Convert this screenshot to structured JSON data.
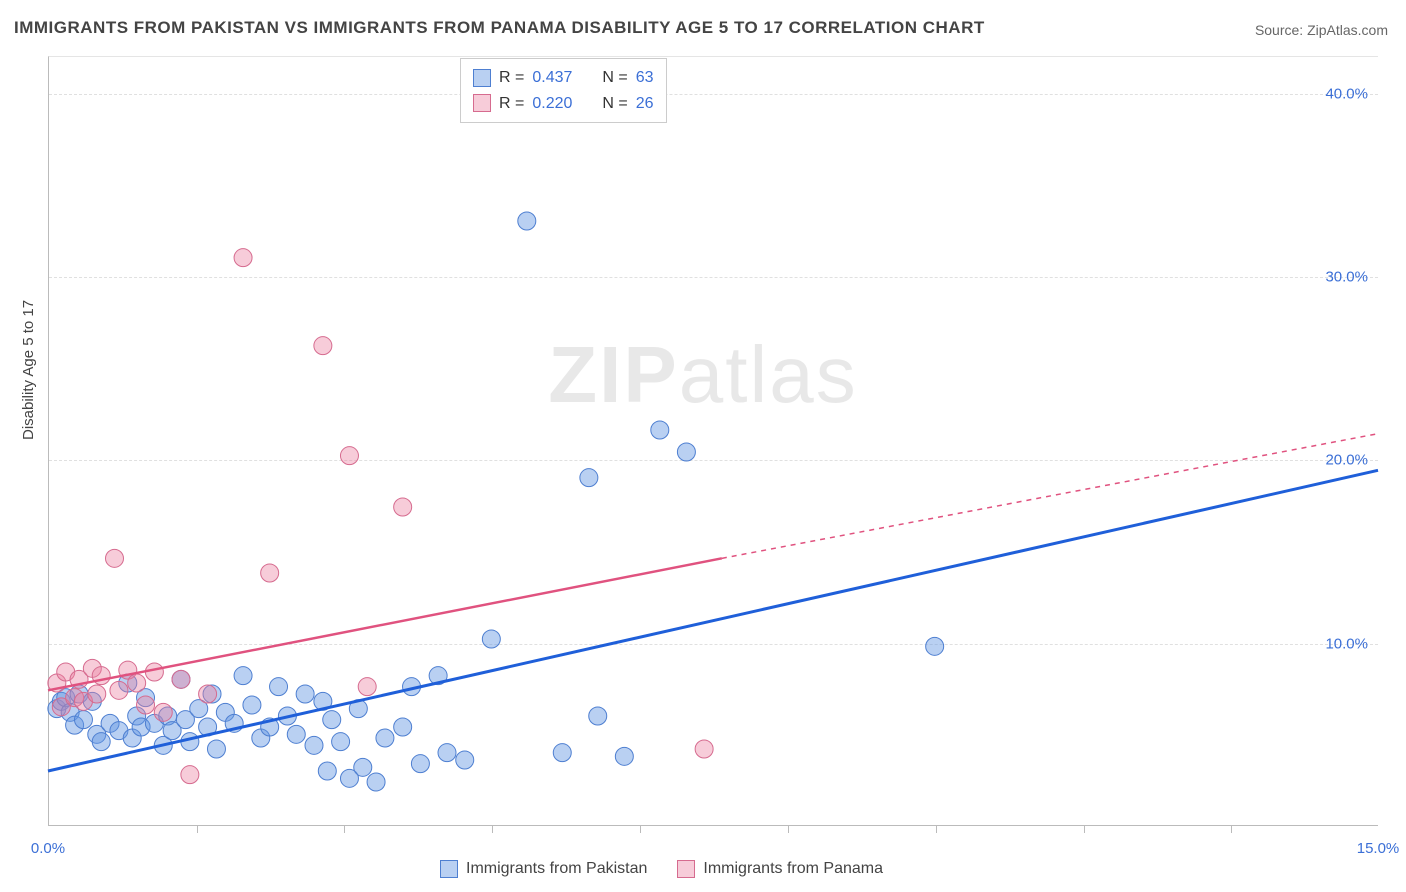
{
  "title": "IMMIGRANTS FROM PAKISTAN VS IMMIGRANTS FROM PANAMA DISABILITY AGE 5 TO 17 CORRELATION CHART",
  "source_label": "Source: ",
  "source_name": "ZipAtlas.com",
  "y_axis_label": "Disability Age 5 to 17",
  "watermark_bold": "ZIP",
  "watermark_rest": "atlas",
  "chart": {
    "type": "scatter",
    "xlim": [
      0,
      15
    ],
    "ylim": [
      0,
      42
    ],
    "x_ticks_visible": [
      0,
      15
    ],
    "x_minor_ticks": [
      1.67,
      3.33,
      5.0,
      6.67,
      8.33,
      10.0,
      11.67,
      13.33
    ],
    "y_ticks": [
      10,
      20,
      30,
      40
    ],
    "x_tick_labels": [
      "0.0%",
      "15.0%"
    ],
    "y_tick_labels": [
      "10.0%",
      "20.0%",
      "30.0%",
      "40.0%"
    ],
    "background_color": "#ffffff",
    "grid_color": "#e0e0e0",
    "axis_color": "#bbbbbb",
    "label_color": "#3b6fd6",
    "point_radius": 9,
    "series": [
      {
        "name": "Immigrants from Pakistan",
        "color_fill": "rgba(99,150,226,0.45)",
        "color_stroke": "#4e7fd1",
        "r_value": "0.437",
        "n_value": "63",
        "trend_line": {
          "x1": 0,
          "y1": 3.0,
          "x2": 15,
          "y2": 19.4,
          "stroke": "#1f5fd9",
          "width": 3
        },
        "points": [
          [
            0.1,
            6.4
          ],
          [
            0.15,
            6.8
          ],
          [
            0.2,
            7.0
          ],
          [
            0.25,
            6.2
          ],
          [
            0.3,
            5.5
          ],
          [
            0.35,
            7.2
          ],
          [
            0.4,
            5.8
          ],
          [
            0.5,
            6.8
          ],
          [
            0.55,
            5.0
          ],
          [
            0.6,
            4.6
          ],
          [
            0.7,
            5.6
          ],
          [
            0.8,
            5.2
          ],
          [
            0.9,
            7.8
          ],
          [
            0.95,
            4.8
          ],
          [
            1.0,
            6.0
          ],
          [
            1.05,
            5.4
          ],
          [
            1.1,
            7.0
          ],
          [
            1.2,
            5.6
          ],
          [
            1.3,
            4.4
          ],
          [
            1.35,
            6.0
          ],
          [
            1.4,
            5.2
          ],
          [
            1.5,
            8.0
          ],
          [
            1.55,
            5.8
          ],
          [
            1.6,
            4.6
          ],
          [
            1.7,
            6.4
          ],
          [
            1.8,
            5.4
          ],
          [
            1.85,
            7.2
          ],
          [
            1.9,
            4.2
          ],
          [
            2.0,
            6.2
          ],
          [
            2.1,
            5.6
          ],
          [
            2.2,
            8.2
          ],
          [
            2.3,
            6.6
          ],
          [
            2.4,
            4.8
          ],
          [
            2.5,
            5.4
          ],
          [
            2.6,
            7.6
          ],
          [
            2.7,
            6.0
          ],
          [
            2.8,
            5.0
          ],
          [
            2.9,
            7.2
          ],
          [
            3.0,
            4.4
          ],
          [
            3.1,
            6.8
          ],
          [
            3.15,
            3.0
          ],
          [
            3.2,
            5.8
          ],
          [
            3.3,
            4.6
          ],
          [
            3.4,
            2.6
          ],
          [
            3.5,
            6.4
          ],
          [
            3.55,
            3.2
          ],
          [
            3.7,
            2.4
          ],
          [
            3.8,
            4.8
          ],
          [
            4.0,
            5.4
          ],
          [
            4.1,
            7.6
          ],
          [
            4.2,
            3.4
          ],
          [
            4.4,
            8.2
          ],
          [
            4.5,
            4.0
          ],
          [
            4.7,
            3.6
          ],
          [
            5.0,
            10.2
          ],
          [
            5.4,
            33.0
          ],
          [
            5.8,
            4.0
          ],
          [
            6.1,
            19.0
          ],
          [
            6.2,
            6.0
          ],
          [
            6.5,
            3.8
          ],
          [
            6.9,
            21.6
          ],
          [
            7.2,
            20.4
          ],
          [
            10.0,
            9.8
          ]
        ]
      },
      {
        "name": "Immigrants from Panama",
        "color_fill": "rgba(235,128,160,0.4)",
        "color_stroke": "#d66b8f",
        "r_value": "0.220",
        "n_value": "26",
        "trend_line_solid": {
          "x1": 0,
          "y1": 7.4,
          "x2": 7.6,
          "y2": 14.6,
          "stroke": "#e0527f",
          "width": 2.5
        },
        "trend_line_dashed": {
          "x1": 7.6,
          "y1": 14.6,
          "x2": 15,
          "y2": 21.4,
          "stroke": "#e0527f",
          "width": 1.5,
          "dash": "5,5"
        },
        "points": [
          [
            0.1,
            7.8
          ],
          [
            0.15,
            6.5
          ],
          [
            0.2,
            8.4
          ],
          [
            0.3,
            7.0
          ],
          [
            0.35,
            8.0
          ],
          [
            0.4,
            6.8
          ],
          [
            0.5,
            8.6
          ],
          [
            0.55,
            7.2
          ],
          [
            0.6,
            8.2
          ],
          [
            0.75,
            14.6
          ],
          [
            0.8,
            7.4
          ],
          [
            0.9,
            8.5
          ],
          [
            1.0,
            7.8
          ],
          [
            1.1,
            6.6
          ],
          [
            1.2,
            8.4
          ],
          [
            1.3,
            6.2
          ],
          [
            1.5,
            8.0
          ],
          [
            1.6,
            2.8
          ],
          [
            1.8,
            7.2
          ],
          [
            2.2,
            31.0
          ],
          [
            2.5,
            13.8
          ],
          [
            3.1,
            26.2
          ],
          [
            3.4,
            20.2
          ],
          [
            3.6,
            7.6
          ],
          [
            4.0,
            17.4
          ],
          [
            7.4,
            4.2
          ]
        ]
      }
    ],
    "legend_top": {
      "r_label": "R =",
      "n_label": "N ="
    },
    "legend_bottom": [
      {
        "swatch": "blue",
        "label": "Immigrants from Pakistan"
      },
      {
        "swatch": "pink",
        "label": "Immigrants from Panama"
      }
    ]
  }
}
